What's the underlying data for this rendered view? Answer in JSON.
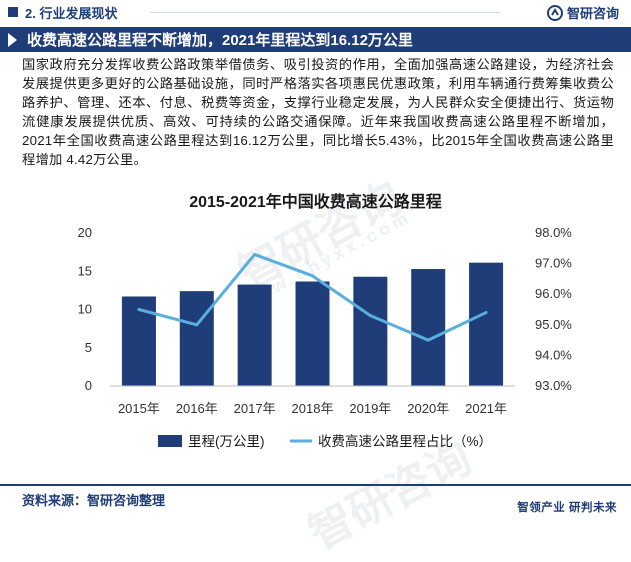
{
  "header": {
    "section_label": "2. 行业发展现状",
    "brand_name": "智研咨询"
  },
  "headline": "收费高速公路里程不断增加，2021年里程达到16.12万公里",
  "paragraph": "国家政府充分发挥收费公路政策举借债务、吸引投资的作用，全面加强高速公路建设，为经济社会发展提供更多更好的公路基础设施，同时严格落实各项惠民优惠政策，利用车辆通行费筹集收费公路养护、管理、还本、付息、税费等资金，支撑行业稳定发展，为人民群众安全便捷出行、货运物流健康发展提供优质、高效、可持续的公路交通保障。近年来我国收费高速公路里程不断增加，2021年全国收费高速公路里程达到16.12万公里，同比增长5.43%，比2015年全国收费高速公路里程增加 4.42万公里。",
  "chart_data": {
    "type": "bar+line",
    "title": "2015-2021年中国收费高速公路里程",
    "categories": [
      "2015年",
      "2016年",
      "2017年",
      "2018年",
      "2019年",
      "2020年",
      "2021年"
    ],
    "series": [
      {
        "name": "里程(万公里)",
        "type": "bar",
        "axis": "left",
        "color": "#1f3d78",
        "values": [
          11.7,
          12.4,
          13.26,
          13.66,
          14.28,
          15.29,
          16.12
        ]
      },
      {
        "name": "收费高速公路里程占比（%）",
        "type": "line",
        "axis": "right",
        "color": "#5aaee0",
        "values": [
          95.5,
          95.0,
          97.3,
          96.6,
          95.3,
          94.5,
          95.4
        ]
      }
    ],
    "y_left": {
      "min": 0,
      "max": 20,
      "ticks": [
        "0",
        "5",
        "10",
        "15",
        "20"
      ]
    },
    "y_right": {
      "min": 93,
      "max": 98,
      "ticks": [
        "93.0%",
        "94.0%",
        "95.0%",
        "96.0%",
        "97.0%",
        "98.0%"
      ]
    },
    "grid": false,
    "legend_position": "bottom"
  },
  "footer": {
    "source": "资料来源：智研咨询整理",
    "slogan": "智领产业 研判未来"
  },
  "watermark": {
    "text": "智研咨询",
    "url_text": "www.chyxx.com"
  },
  "colors": {
    "brand": "#1f3d78",
    "line": "#5aaee0"
  }
}
